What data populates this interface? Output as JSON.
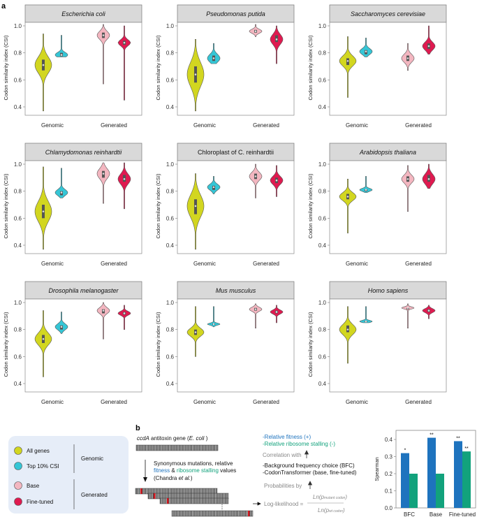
{
  "panel_labels": {
    "a": "a",
    "b": "b"
  },
  "colors": {
    "all_genes": "#d2d620",
    "top10": "#35c6d6",
    "base": "#f3b6c0",
    "fine_tuned": "#df1a50",
    "fitness": "#1e73be",
    "stalling": "#12a27c"
  },
  "chart_data": [
    {
      "type": "violin",
      "ylabel": "Codon similarity index (CSI)",
      "ylim": [
        0.4,
        1.0
      ],
      "yticks": [
        "0.4",
        "0.6",
        "0.8",
        "1.0"
      ],
      "categories": [
        "Genomic",
        "Generated"
      ],
      "series_names": [
        "All genes",
        "Top 10% CSI",
        "Base",
        "Fine-tuned"
      ],
      "panels": [
        {
          "title": "Escherichia coli",
          "italic": true,
          "violins": [
            {
              "median": 0.71,
              "q1": 0.67,
              "q3": 0.75,
              "min": 0.37,
              "max": 0.94
            },
            {
              "median": 0.785,
              "q1": 0.775,
              "q3": 0.8,
              "min": 0.77,
              "max": 0.93
            },
            {
              "median": 0.93,
              "q1": 0.91,
              "q3": 0.95,
              "min": 0.57,
              "max": 1.01
            },
            {
              "median": 0.875,
              "q1": 0.86,
              "q3": 0.89,
              "min": 0.45,
              "max": 1.0
            }
          ]
        },
        {
          "title": "Pseudomonas putida",
          "italic": true,
          "violins": [
            {
              "median": 0.64,
              "q1": 0.58,
              "q3": 0.7,
              "min": 0.37,
              "max": 0.9
            },
            {
              "median": 0.76,
              "q1": 0.74,
              "q3": 0.78,
              "min": 0.72,
              "max": 0.87
            },
            {
              "median": 0.96,
              "q1": 0.95,
              "q3": 0.97,
              "min": 0.92,
              "max": 1.01
            },
            {
              "median": 0.9,
              "q1": 0.88,
              "q3": 0.93,
              "min": 0.72,
              "max": 1.0
            }
          ]
        },
        {
          "title": "Saccharomyces cerevisiae",
          "italic": true,
          "violins": [
            {
              "median": 0.74,
              "q1": 0.71,
              "q3": 0.76,
              "min": 0.47,
              "max": 0.92
            },
            {
              "median": 0.81,
              "q1": 0.79,
              "q3": 0.82,
              "min": 0.77,
              "max": 0.91
            },
            {
              "median": 0.76,
              "q1": 0.74,
              "q3": 0.78,
              "min": 0.67,
              "max": 0.87
            },
            {
              "median": 0.85,
              "q1": 0.83,
              "q3": 0.87,
              "min": 0.79,
              "max": 1.0
            }
          ]
        },
        {
          "title": "Chlamydomonas reinhardtii",
          "italic": true,
          "violins": [
            {
              "median": 0.65,
              "q1": 0.6,
              "q3": 0.7,
              "min": 0.37,
              "max": 0.98
            },
            {
              "median": 0.79,
              "q1": 0.77,
              "q3": 0.8,
              "min": 0.75,
              "max": 0.97
            },
            {
              "median": 0.93,
              "q1": 0.9,
              "q3": 0.95,
              "min": 0.71,
              "max": 1.01
            },
            {
              "median": 0.89,
              "q1": 0.87,
              "q3": 0.92,
              "min": 0.67,
              "max": 1.01
            }
          ]
        },
        {
          "title": "Chloroplast of C. reinhardtii",
          "italic": false,
          "violins": [
            {
              "median": 0.69,
              "q1": 0.63,
              "q3": 0.74,
              "min": 0.37,
              "max": 0.93
            },
            {
              "median": 0.83,
              "q1": 0.81,
              "q3": 0.84,
              "min": 0.78,
              "max": 0.91
            },
            {
              "median": 0.91,
              "q1": 0.89,
              "q3": 0.93,
              "min": 0.75,
              "max": 1.0
            },
            {
              "median": 0.88,
              "q1": 0.86,
              "q3": 0.9,
              "min": 0.76,
              "max": 0.99
            }
          ]
        },
        {
          "title": "Arabidopsis thaliana",
          "italic": true,
          "violins": [
            {
              "median": 0.76,
              "q1": 0.74,
              "q3": 0.78,
              "min": 0.49,
              "max": 0.89
            },
            {
              "median": 0.81,
              "q1": 0.8,
              "q3": 0.815,
              "min": 0.79,
              "max": 0.91
            },
            {
              "median": 0.89,
              "q1": 0.87,
              "q3": 0.91,
              "min": 0.65,
              "max": 0.99
            },
            {
              "median": 0.89,
              "q1": 0.87,
              "q3": 0.92,
              "min": 0.82,
              "max": 1.0
            }
          ]
        },
        {
          "title": "Drosophila melanogaster",
          "italic": true,
          "violins": [
            {
              "median": 0.73,
              "q1": 0.7,
              "q3": 0.76,
              "min": 0.45,
              "max": 0.94
            },
            {
              "median": 0.82,
              "q1": 0.8,
              "q3": 0.83,
              "min": 0.77,
              "max": 0.93
            },
            {
              "median": 0.94,
              "q1": 0.92,
              "q3": 0.95,
              "min": 0.73,
              "max": 1.0
            },
            {
              "median": 0.92,
              "q1": 0.91,
              "q3": 0.93,
              "min": 0.8,
              "max": 0.98
            }
          ]
        },
        {
          "title": "Mus musculus",
          "italic": true,
          "violins": [
            {
              "median": 0.78,
              "q1": 0.76,
              "q3": 0.8,
              "min": 0.6,
              "max": 0.97
            },
            {
              "median": 0.84,
              "q1": 0.835,
              "q3": 0.845,
              "min": 0.82,
              "max": 0.97
            },
            {
              "median": 0.95,
              "q1": 0.94,
              "q3": 0.96,
              "min": 0.81,
              "max": 0.99
            },
            {
              "median": 0.93,
              "q1": 0.92,
              "q3": 0.94,
              "min": 0.85,
              "max": 0.98
            }
          ]
        },
        {
          "title": "Homo sapiens",
          "italic": true,
          "violins": [
            {
              "median": 0.8,
              "q1": 0.78,
              "q3": 0.83,
              "min": 0.55,
              "max": 0.97
            },
            {
              "median": 0.86,
              "q1": 0.855,
              "q3": 0.865,
              "min": 0.85,
              "max": 0.97
            },
            {
              "median": 0.96,
              "q1": 0.95,
              "q3": 0.96,
              "min": 0.81,
              "max": 0.99
            },
            {
              "median": 0.94,
              "q1": 0.93,
              "q3": 0.95,
              "min": 0.88,
              "max": 0.98
            }
          ]
        }
      ]
    },
    {
      "type": "bar",
      "ylabel": "Spearman",
      "ylim": [
        0,
        0.45
      ],
      "yticks": [
        "0.0",
        "0.1",
        "0.2",
        "0.3",
        "0.4"
      ],
      "categories": [
        "BFC",
        "Base",
        "Fine-tuned"
      ],
      "series": [
        {
          "key": "fitness",
          "values": [
            0.32,
            0.41,
            0.39
          ],
          "significance": [
            "*",
            "**",
            "**"
          ]
        },
        {
          "key": "stalling",
          "values": [
            0.2,
            0.2,
            0.33
          ],
          "significance": [
            "",
            "",
            "**"
          ]
        }
      ]
    }
  ],
  "legend": {
    "items": [
      "All genes",
      "Top 10% CSI",
      "Base",
      "Fine-tuned"
    ],
    "groups": [
      "Genomic",
      "Generated"
    ]
  },
  "panel_b": {
    "gene_title": "ccdA",
    "gene_title_rest": " antitoxin gene (",
    "gene_species": "E. coli",
    "gene_close": " )",
    "mutation_line1": "Synonymous mutations, relative",
    "fitness_word": "fitness",
    "amp": " & ",
    "stalling_word": "ribosome stalling",
    "values_word": " values",
    "citation_open": "(Chandra ",
    "citation_etal": "et al.",
    "citation_close": ")",
    "relative_fitness": "-Relative fitness (+)",
    "relative_stalling": "-Relative ribosome stalling (-)",
    "correlation_with": "Correlation with",
    "bfc": "-Background frequency choice (BFC)",
    "codontransformer": "-CodonTransformer (base, fine-tuned)",
    "probabilities_by": "Probabilities by",
    "log_likelihood": "Log-likelihood =",
    "numerator": "Ln(p",
    "numerator_sub": "mutant codon",
    "denominator": "Ln(p",
    "denominator_sub": "wt codon",
    "close_paren": ")"
  }
}
